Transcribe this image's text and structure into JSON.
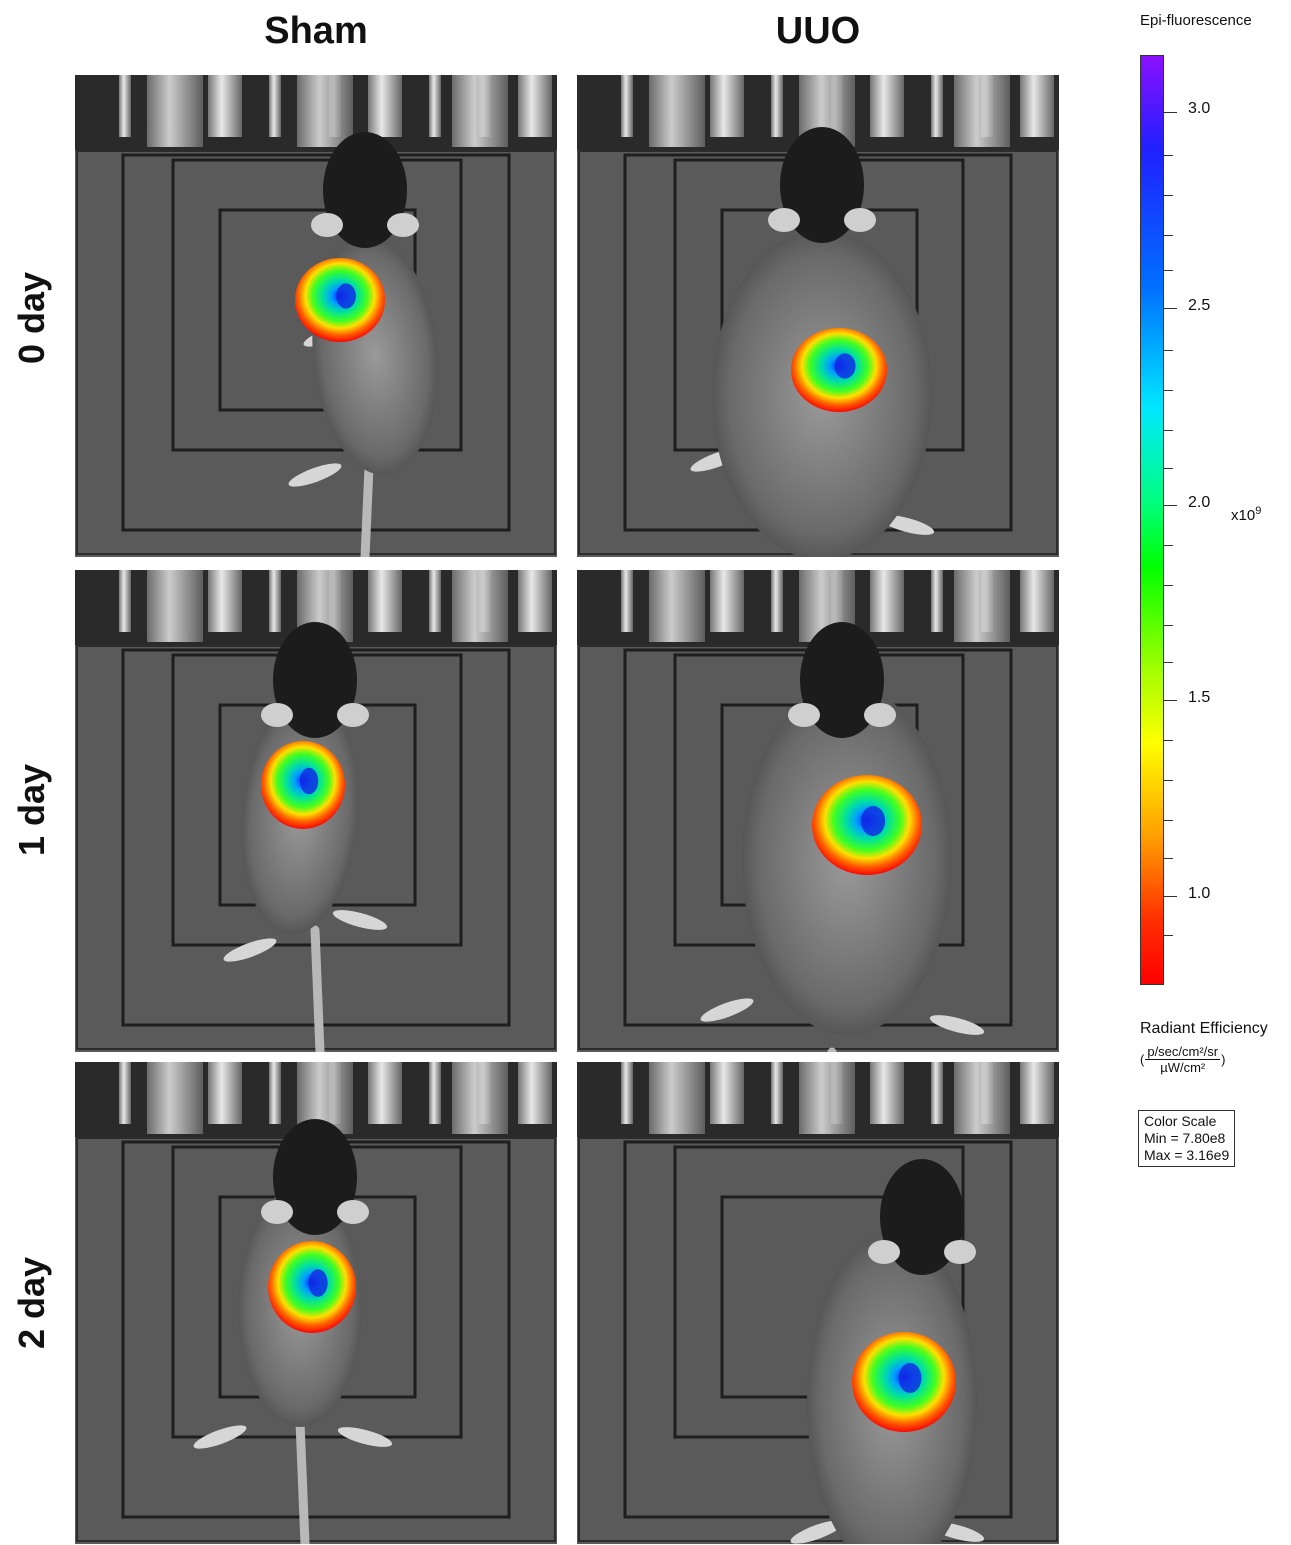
{
  "columns": [
    "Sham",
    "UUO"
  ],
  "rows": [
    "0 day",
    "1 day",
    "2 day"
  ],
  "legend": {
    "title": "Epi-fluorescence",
    "colorbar_ticks": [
      "3.0",
      "2.5",
      "2.0",
      "1.5",
      "1.0"
    ],
    "exponent_base": "x10",
    "exponent_power": "9",
    "quantity": "Radiant Efficiency",
    "unit_numerator": "p/sec/cm²/sr",
    "unit_denominator": "µW/cm²",
    "scale_box_title": "Color Scale",
    "scale_min": "Min = 7.80e8",
    "scale_max": "Max = 3.16e9"
  },
  "colors": {
    "low": "#ff0000",
    "mid_low": "#ffff00",
    "mid": "#00ff00",
    "mid_high": "#00ffff",
    "high": "#0000ff",
    "top": "#8000ff"
  }
}
